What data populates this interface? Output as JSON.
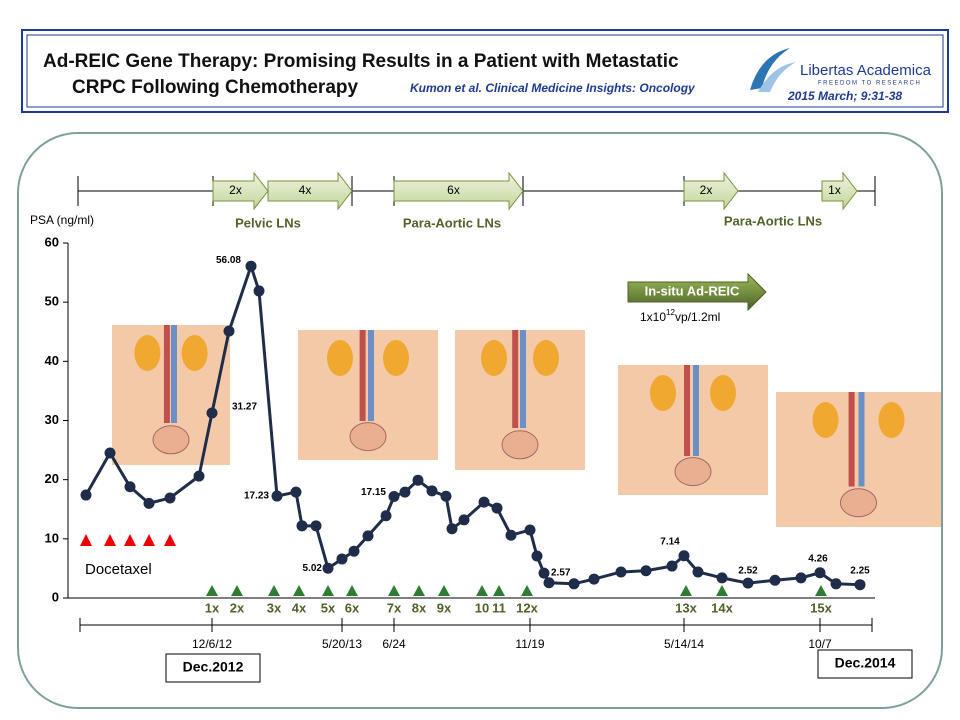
{
  "header": {
    "title_line1": "Ad-REIC Gene Therapy: Promising Results in a Patient with Metastatic",
    "title_line2": "CRPC Following Chemotherapy",
    "citation": "Kumon et al. Clinical Medicine Insights: Oncology",
    "publisher": "Libertas Academica",
    "tagline": "FREEDOM TO RESEARCH",
    "reference": "2015 March; 9:31-38"
  },
  "timeline": {
    "arrows": [
      "2x",
      "4x",
      "6x",
      "2x",
      "1x"
    ],
    "regions": [
      "Pelvic LNs",
      "Para-Aortic LNs",
      "Para-Aortic LNs"
    ]
  },
  "protocol": {
    "name": "In-situ Ad-REIC",
    "dose_base": "1x10",
    "dose_exp": "12",
    "dose_unit": "vp/1.2ml"
  },
  "docetaxel": "Docetaxel",
  "injections": [
    "1x",
    "2x",
    "3x",
    "4x",
    "5x",
    "6x",
    "7x",
    "8x",
    "9x",
    "10",
    "11",
    "12x",
    "13x",
    "14x",
    "15x"
  ],
  "period_start": "Dec.2012",
  "period_end": "Dec.2014",
  "chart_data": {
    "type": "line",
    "y_label": "PSA (ng/ml)",
    "color": "#1f2d4a",
    "categories": [
      null,
      null,
      null,
      null,
      null,
      null,
      "12/6/12",
      null,
      null,
      null,
      null,
      null,
      null,
      null,
      null,
      "5/20/13",
      null,
      null,
      null,
      "6/24",
      null,
      null,
      null,
      null,
      null,
      null,
      null,
      null,
      null,
      "11/19",
      null,
      null,
      null,
      null,
      null,
      null,
      null,
      null,
      "5/14/14",
      null,
      null,
      null,
      null,
      null,
      "10/7",
      null,
      null
    ],
    "values": [
      17.4,
      24.5,
      18.8,
      16.0,
      16.9,
      20.6,
      31.27,
      45.1,
      56.08,
      51.9,
      17.23,
      17.9,
      12.2,
      12.2,
      5.02,
      6.6,
      7.9,
      10.5,
      13.9,
      17.15,
      17.9,
      19.9,
      18.1,
      17.2,
      11.7,
      13.2,
      16.2,
      15.2,
      10.6,
      11.5,
      7.1,
      4.2,
      2.57,
      2.4,
      3.2,
      4.4,
      4.6,
      5.4,
      7.14,
      4.4,
      3.4,
      2.52,
      3.0,
      3.4,
      4.26,
      2.4,
      2.25
    ],
    "value_labels": [
      null,
      null,
      null,
      null,
      null,
      null,
      "31.27",
      null,
      "56.08",
      null,
      "17.23",
      null,
      null,
      null,
      "5.02",
      null,
      null,
      null,
      null,
      "17.15",
      null,
      null,
      null,
      null,
      null,
      null,
      null,
      null,
      null,
      null,
      null,
      null,
      "2.57",
      null,
      null,
      null,
      null,
      null,
      "7.14",
      null,
      null,
      "2.52",
      null,
      null,
      "4.26",
      null,
      "2.25"
    ],
    "ylim": [
      0,
      60
    ],
    "yticks": [
      0,
      10,
      20,
      30,
      40,
      50,
      60
    ]
  }
}
